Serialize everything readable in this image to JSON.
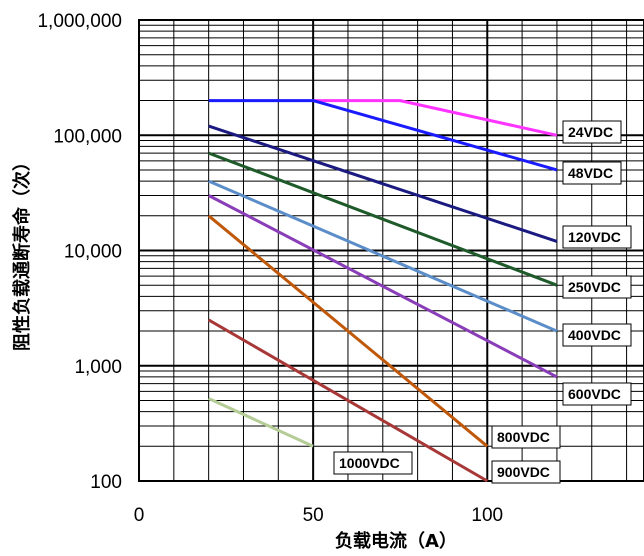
{
  "chart_data": {
    "type": "line",
    "xlabel": "负载电流（A）",
    "ylabel": "阻性负载通断寿命（次）",
    "xscale": "linear",
    "yscale": "log",
    "xlim": [
      0,
      145
    ],
    "ylim": [
      100,
      1000000
    ],
    "grid": true,
    "x_ticks": [
      {
        "value": 0,
        "label": "0"
      },
      {
        "value": 50,
        "label": "50"
      },
      {
        "value": 100,
        "label": "100"
      }
    ],
    "y_ticks": [
      {
        "value": 100,
        "label": "100"
      },
      {
        "value": 1000,
        "label": "1,000"
      },
      {
        "value": 10000,
        "label": "10,000"
      },
      {
        "value": 100000,
        "label": "100,000"
      },
      {
        "value": 1000000,
        "label": "1,000,000"
      }
    ],
    "series": [
      {
        "name": "24VDC",
        "color": "#ff33ff",
        "points": [
          [
            50,
            200000
          ],
          [
            75,
            200000
          ],
          [
            120,
            100000
          ]
        ]
      },
      {
        "name": "48VDC",
        "color": "#1a1aff",
        "points": [
          [
            20,
            200000
          ],
          [
            50,
            200000
          ],
          [
            120,
            50000
          ]
        ]
      },
      {
        "name": "120VDC",
        "color": "#1a1a80",
        "points": [
          [
            20,
            120000
          ],
          [
            120,
            12000
          ]
        ]
      },
      {
        "name": "250VDC",
        "color": "#1f5a2a",
        "points": [
          [
            20,
            70000
          ],
          [
            120,
            5000
          ]
        ]
      },
      {
        "name": "400VDC",
        "color": "#5b8ec9",
        "points": [
          [
            20,
            40000
          ],
          [
            120,
            2000
          ]
        ]
      },
      {
        "name": "600VDC",
        "color": "#8a3db8",
        "points": [
          [
            20,
            30000
          ],
          [
            120,
            800
          ]
        ]
      },
      {
        "name": "800VDC",
        "color": "#c0580a",
        "points": [
          [
            20,
            20000
          ],
          [
            100,
            200
          ]
        ]
      },
      {
        "name": "900VDC",
        "color": "#a83838",
        "points": [
          [
            20,
            2500
          ],
          [
            100,
            100
          ]
        ]
      },
      {
        "name": "1000VDC",
        "color": "#b4cc96",
        "points": [
          [
            20,
            520
          ],
          [
            50,
            200
          ]
        ]
      }
    ]
  }
}
